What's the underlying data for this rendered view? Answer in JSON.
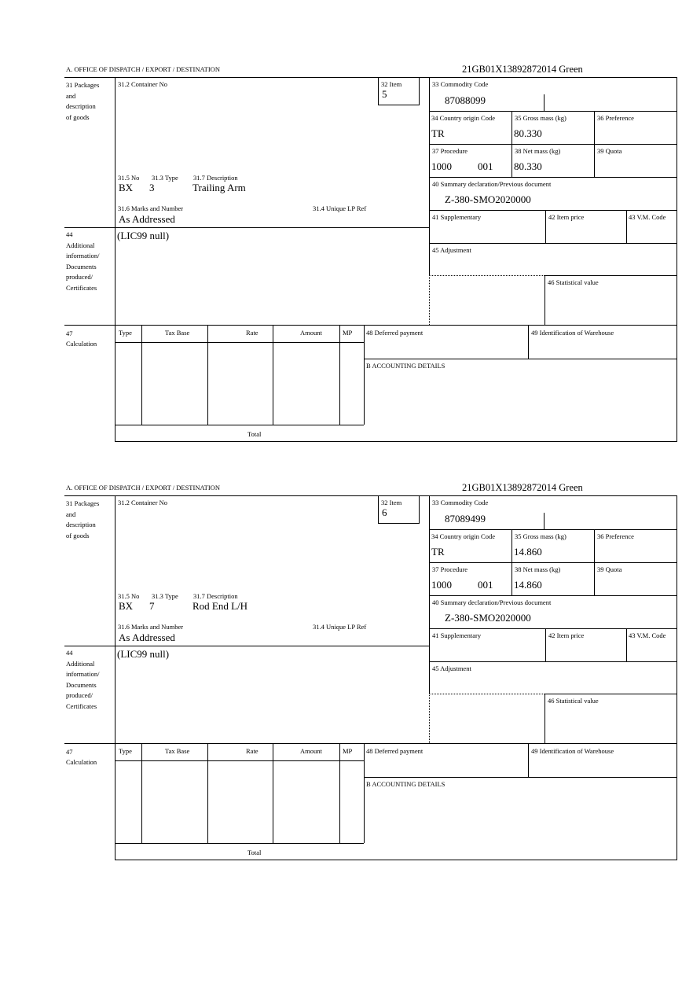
{
  "labels": {
    "section_a": "A.  OFFICE OF DISPATCH / EXPORT / DESTINATION",
    "packages": "31 Packages\nand\ndescription\nof goods",
    "container_no": "31.2 Container No",
    "item": "32 Item",
    "commodity_code": "33 Commodity Code",
    "country_origin": "34 Country origin Code",
    "gross_mass": "35 Gross mass (kg)",
    "preference": "36 Preference",
    "procedure": "37 Procedure",
    "net_mass": "38 Net mass (kg)",
    "quota": "39 Quota",
    "summary_decl": "40 Summary declaration/Previous document",
    "supplementary": "41 Supplementary",
    "item_price": "42 Item price",
    "vm_code": "43 V.M. Code",
    "adjustment": "45 Adjustment",
    "statistical_value": "46 Statistical value",
    "no": "31.5 No",
    "type": "31.3 Type",
    "description": "31.7 Description",
    "marks": "31.6 Marks and Number",
    "unique_lp": "31.4 Unique LP Ref",
    "additional_info": "44\nAdditional\ninformation/\nDocuments\nproduced/\nCertificates",
    "calculation": "47\nCalculation",
    "calc_type": "Type",
    "calc_tax_base": "Tax Base",
    "calc_rate": "Rate",
    "calc_amount": "Amount",
    "calc_mp": "MP",
    "deferred_payment": "48 Deferred payment",
    "warehouse": "49 Identification of Warehouse",
    "accounting": "B ACCOUNTING DETAILS",
    "total": "Total"
  },
  "forms": [
    {
      "reference": "21GB01X13892872014    Green",
      "item": "5",
      "commodity_code": "87088099",
      "country_origin": "TR",
      "gross_mass": "80.330",
      "procedure": "1000",
      "procedure_add": "001",
      "net_mass": "80.330",
      "summary_decl": "Z-380-SMO2020000",
      "no": "BX",
      "type": "3",
      "description": "Trailing Arm",
      "marks": "As Addressed",
      "additional_info": "(LIC99 null)"
    },
    {
      "reference": "21GB01X13892872014    Green",
      "item": "6",
      "commodity_code": "87089499",
      "country_origin": "TR",
      "gross_mass": "14.860",
      "procedure": "1000",
      "procedure_add": "001",
      "net_mass": "14.860",
      "summary_decl": "Z-380-SMO2020000",
      "no": "BX",
      "type": "7",
      "description": "Rod End L/H",
      "marks": "As Addressed",
      "additional_info": "(LIC99 null)"
    }
  ]
}
